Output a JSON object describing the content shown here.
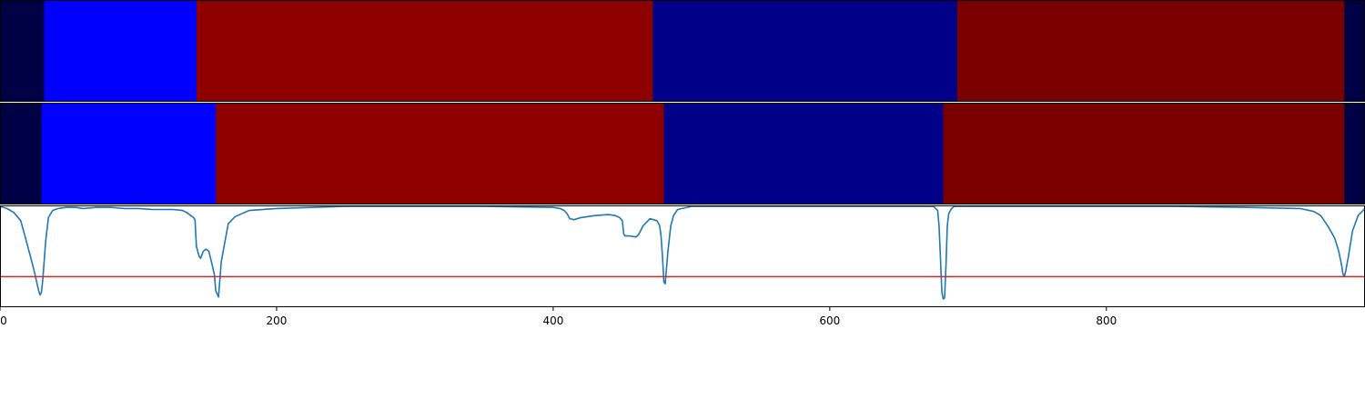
{
  "chart_data": [
    {
      "type": "heatmap",
      "row": "top",
      "segments": [
        {
          "start": 0,
          "end": 32,
          "color": "#000044"
        },
        {
          "start": 32,
          "end": 142,
          "color": "#0000ff"
        },
        {
          "start": 142,
          "end": 472,
          "color": "#8e0000"
        },
        {
          "start": 472,
          "end": 692,
          "color": "#000088"
        },
        {
          "start": 692,
          "end": 972,
          "color": "#7a0000"
        },
        {
          "start": 972,
          "end": 987,
          "color": "#000044"
        }
      ]
    },
    {
      "type": "heatmap",
      "row": "middle",
      "segments": [
        {
          "start": 0,
          "end": 30,
          "color": "#000044"
        },
        {
          "start": 30,
          "end": 156,
          "color": "#0000ff"
        },
        {
          "start": 156,
          "end": 480,
          "color": "#8e0000"
        },
        {
          "start": 480,
          "end": 682,
          "color": "#000088"
        },
        {
          "start": 682,
          "end": 972,
          "color": "#7a0000"
        },
        {
          "start": 972,
          "end": 987,
          "color": "#000044"
        }
      ]
    },
    {
      "type": "line",
      "xlim": [
        0,
        987
      ],
      "ylim": [
        0,
        1
      ],
      "grid": false,
      "x_ticks": [
        0,
        200,
        400,
        600,
        800
      ],
      "x_tick_labels": [
        "0",
        "200",
        "400",
        "600",
        "800"
      ],
      "series": [
        {
          "color": "#1f77b4",
          "x": [
            0,
            5,
            10,
            15,
            18,
            22,
            25,
            27,
            28,
            29,
            30,
            31,
            33,
            35,
            38,
            42,
            48,
            55,
            60,
            70,
            80,
            90,
            100,
            110,
            118,
            125,
            132,
            135,
            138,
            140,
            141,
            142,
            144,
            145,
            147,
            149,
            151,
            153,
            155,
            156,
            158,
            160,
            165,
            170,
            180,
            200,
            250,
            300,
            350,
            400,
            405,
            408,
            410,
            412,
            415,
            420,
            430,
            440,
            445,
            448,
            450,
            451,
            452,
            455,
            460,
            462,
            465,
            470,
            475,
            477,
            478,
            479,
            480,
            481,
            483,
            485,
            487,
            490,
            500,
            550,
            600,
            650,
            675,
            678,
            679,
            680,
            681,
            682,
            683,
            684,
            685,
            686,
            688,
            690,
            700,
            750,
            800,
            850,
            900,
            940,
            950,
            955,
            960,
            965,
            968,
            970,
            971,
            972,
            973,
            975,
            978,
            982,
            987
          ],
          "y": [
            0.99,
            0.97,
            0.93,
            0.85,
            0.7,
            0.5,
            0.34,
            0.22,
            0.16,
            0.12,
            0.15,
            0.28,
            0.65,
            0.88,
            0.95,
            0.97,
            0.98,
            0.98,
            0.97,
            0.98,
            0.98,
            0.97,
            0.97,
            0.96,
            0.96,
            0.96,
            0.95,
            0.93,
            0.9,
            0.88,
            0.86,
            0.6,
            0.5,
            0.48,
            0.55,
            0.57,
            0.55,
            0.44,
            0.32,
            0.16,
            0.1,
            0.45,
            0.82,
            0.89,
            0.95,
            0.97,
            0.99,
            0.99,
            0.99,
            0.98,
            0.97,
            0.95,
            0.92,
            0.87,
            0.86,
            0.88,
            0.9,
            0.91,
            0.9,
            0.88,
            0.85,
            0.72,
            0.7,
            0.7,
            0.69,
            0.72,
            0.8,
            0.87,
            0.85,
            0.8,
            0.7,
            0.5,
            0.25,
            0.23,
            0.55,
            0.8,
            0.9,
            0.96,
            0.99,
            0.99,
            0.99,
            0.99,
            0.99,
            0.95,
            0.8,
            0.5,
            0.15,
            0.08,
            0.09,
            0.4,
            0.8,
            0.92,
            0.97,
            0.99,
            0.99,
            0.99,
            0.99,
            0.99,
            0.98,
            0.97,
            0.94,
            0.9,
            0.8,
            0.68,
            0.55,
            0.42,
            0.33,
            0.3,
            0.35,
            0.5,
            0.75,
            0.9,
            0.97
          ]
        }
      ],
      "hline": {
        "y": 0.3,
        "color": "#d62728"
      }
    }
  ]
}
